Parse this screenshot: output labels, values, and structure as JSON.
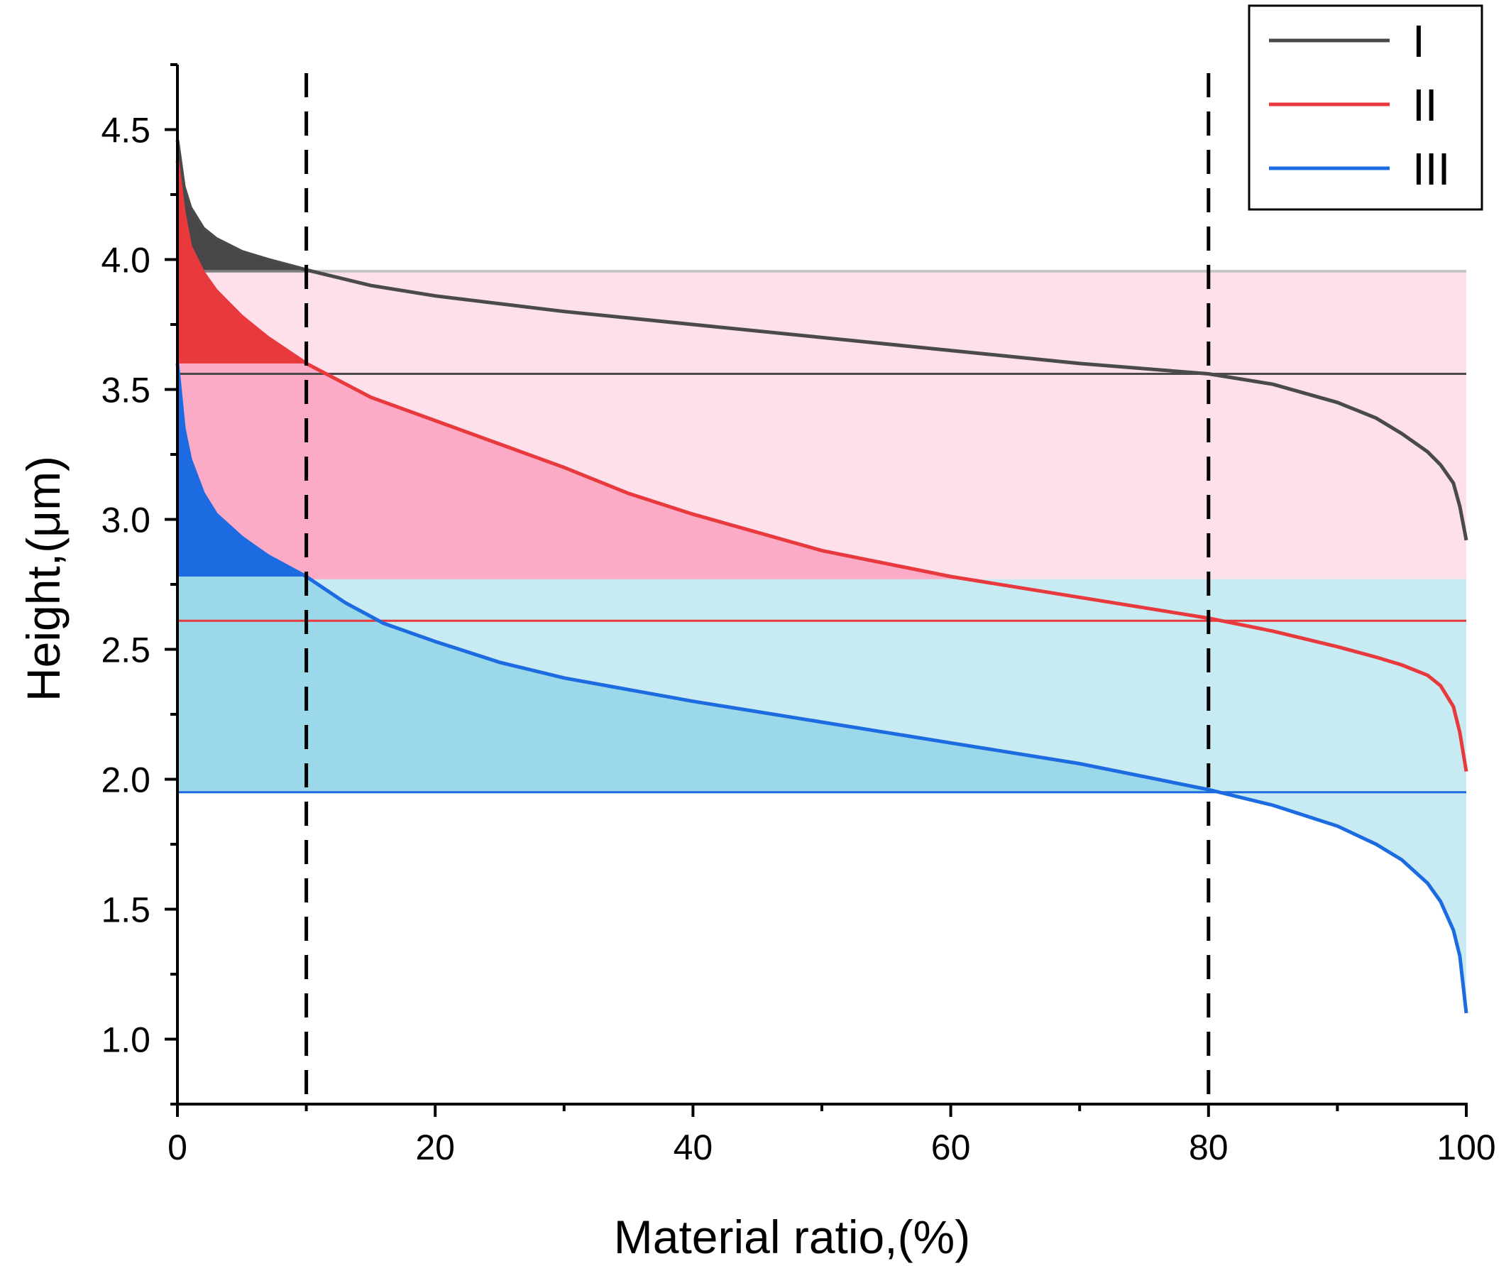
{
  "chart_data": {
    "type": "area",
    "xlabel": "Material ratio,(%)",
    "ylabel": "Height,(μm)",
    "xlim": [
      0,
      100
    ],
    "ylim": [
      0.75,
      4.75
    ],
    "x_ticks": [
      0,
      20,
      40,
      60,
      80,
      100
    ],
    "x_tick_labels": [
      "0",
      "20",
      "40",
      "60",
      "80",
      "100"
    ],
    "y_ticks": [
      1.0,
      1.5,
      2.0,
      2.5,
      3.0,
      3.5,
      4.0,
      4.5
    ],
    "y_tick_labels": [
      "1.0",
      "1.5",
      "2.0",
      "2.5",
      "3.0",
      "3.5",
      "4.0",
      "4.5"
    ],
    "grid": false,
    "legend_position": "top-right",
    "reference_lines_x": [
      10,
      80
    ],
    "series": [
      {
        "name": "I",
        "color": "#4a4a4a",
        "fill_peak": "#474747",
        "fill_core": "#7f7f7f",
        "fill_top": "#c2c2c2",
        "core_top": 3.96,
        "core_bottom": 3.56,
        "x": [
          0,
          0.5,
          1,
          2,
          3,
          5,
          7,
          10,
          15,
          20,
          30,
          40,
          50,
          60,
          70,
          80,
          85,
          90,
          93,
          95,
          97,
          98,
          99,
          99.5,
          100
        ],
        "y": [
          4.46,
          4.28,
          4.2,
          4.12,
          4.08,
          4.03,
          4.0,
          3.96,
          3.9,
          3.86,
          3.8,
          3.75,
          3.7,
          3.65,
          3.6,
          3.56,
          3.52,
          3.45,
          3.39,
          3.33,
          3.26,
          3.21,
          3.14,
          3.05,
          2.92
        ]
      },
      {
        "name": "II",
        "color": "#e8393d",
        "fill_peak": "#e8393d",
        "fill_core": "#fbabc6",
        "fill_top": "#fde0ea",
        "core_top": 3.95,
        "core_bottom": 2.61,
        "x": [
          0,
          0.5,
          1,
          2,
          3,
          5,
          7,
          10,
          15,
          20,
          25,
          30,
          35,
          40,
          50,
          60,
          70,
          80,
          85,
          90,
          93,
          95,
          97,
          98,
          99,
          99.5,
          100
        ],
        "y": [
          4.38,
          4.18,
          4.05,
          3.95,
          3.88,
          3.78,
          3.7,
          3.6,
          3.47,
          3.38,
          3.29,
          3.2,
          3.1,
          3.02,
          2.88,
          2.78,
          2.7,
          2.62,
          2.57,
          2.51,
          2.47,
          2.44,
          2.4,
          2.36,
          2.28,
          2.18,
          2.03
        ]
      },
      {
        "name": "III",
        "color": "#1c6be0",
        "fill_peak": "#1c6be0",
        "fill_core": "#9bd8ea",
        "fill_top": "#c8eaf3",
        "core_top": 2.77,
        "core_bottom": 1.95,
        "x": [
          0,
          0.5,
          1,
          2,
          3,
          5,
          7,
          10,
          13,
          16,
          20,
          25,
          30,
          40,
          50,
          60,
          70,
          80,
          85,
          90,
          93,
          95,
          97,
          98,
          99,
          99.5,
          100
        ],
        "y": [
          3.6,
          3.35,
          3.23,
          3.1,
          3.02,
          2.93,
          2.86,
          2.78,
          2.68,
          2.6,
          2.53,
          2.45,
          2.39,
          2.3,
          2.22,
          2.14,
          2.06,
          1.96,
          1.9,
          1.82,
          1.75,
          1.69,
          1.6,
          1.53,
          1.42,
          1.32,
          1.1
        ]
      }
    ]
  }
}
